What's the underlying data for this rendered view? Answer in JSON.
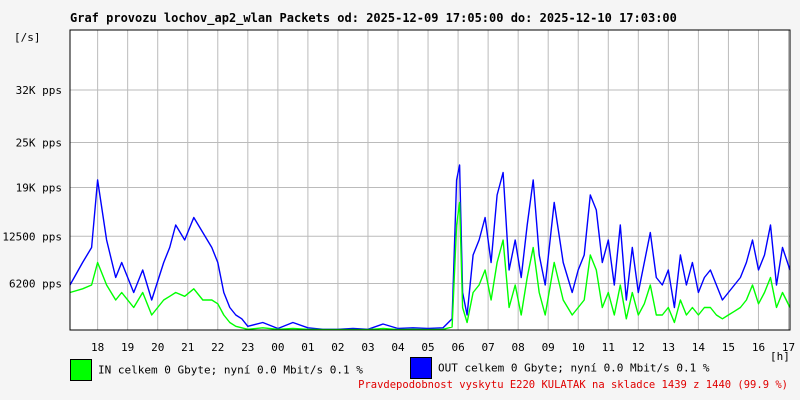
{
  "title": "Graf provozu lochov_ap2_wlan Packets od: 2025-12-09 17:05:00 do: 2025-12-10 17:03:00",
  "footer": "Pravdepodobnost vyskytu E220 KULATAK na skladce 1439 z 1440 (99.9 %)",
  "legend": {
    "in_text": "IN celkem 0 Gbyte; nyní   0.0 Mbit/s 0.1 %",
    "out_text": "OUT celkem 0 Gbyte; nyní   0.0 Mbit/s 0.1 %"
  },
  "colors": {
    "in": "#00ff00",
    "out": "#0000ff",
    "grid": "#bbbbbb"
  },
  "chart_data": {
    "type": "area",
    "ylabel": "[/s]",
    "xlabel": "[h]",
    "ylim": [
      0,
      40000
    ],
    "y_ticks": [
      {
        "value": 6200,
        "label": "6200 pps"
      },
      {
        "value": 12500,
        "label": "12500 pps"
      },
      {
        "value": 19000,
        "label": "19K pps"
      },
      {
        "value": 25000,
        "label": "25K pps"
      },
      {
        "value": 32000,
        "label": "32K pps"
      }
    ],
    "x_tick_labels": [
      "18",
      "19",
      "20",
      "21",
      "22",
      "23",
      "00",
      "01",
      "02",
      "03",
      "04",
      "05",
      "06",
      "07",
      "08",
      "09",
      "10",
      "11",
      "12",
      "13",
      "14",
      "15",
      "16",
      "17"
    ],
    "xlim_hours": [
      17.08,
      41.05
    ],
    "grid": true,
    "series": [
      {
        "name": "OUT",
        "x_hours": [
          17.08,
          17.5,
          17.8,
          18.0,
          18.3,
          18.6,
          18.8,
          19.2,
          19.5,
          19.8,
          20.2,
          20.4,
          20.6,
          20.9,
          21.2,
          21.5,
          21.8,
          22.0,
          22.2,
          22.4,
          22.6,
          22.8,
          23.0,
          23.5,
          24.0,
          24.5,
          25.0,
          25.5,
          26.0,
          26.5,
          27.0,
          27.5,
          28.0,
          28.5,
          29.0,
          29.5,
          29.8,
          29.95,
          30.05,
          30.15,
          30.3,
          30.5,
          30.7,
          30.9,
          31.1,
          31.3,
          31.5,
          31.7,
          31.9,
          32.1,
          32.3,
          32.5,
          32.7,
          32.9,
          33.2,
          33.5,
          33.8,
          34.0,
          34.2,
          34.4,
          34.6,
          34.8,
          35.0,
          35.2,
          35.4,
          35.6,
          35.8,
          36.0,
          36.2,
          36.4,
          36.6,
          36.8,
          37.0,
          37.2,
          37.4,
          37.6,
          37.8,
          38.0,
          38.2,
          38.4,
          38.6,
          38.8,
          39.0,
          39.2,
          39.4,
          39.6,
          39.8,
          40.0,
          40.2,
          40.4,
          40.6,
          40.8,
          41.05
        ],
        "values": [
          6000,
          9000,
          11000,
          20000,
          12000,
          7000,
          9000,
          5000,
          8000,
          4000,
          9000,
          11000,
          14000,
          12000,
          15000,
          13000,
          11000,
          9000,
          5000,
          3000,
          2000,
          1500,
          500,
          1000,
          200,
          1000,
          300,
          100,
          100,
          200,
          100,
          800,
          200,
          300,
          200,
          300,
          1500,
          20000,
          22000,
          5000,
          2000,
          10000,
          12000,
          15000,
          9000,
          18000,
          21000,
          8000,
          12000,
          7000,
          14000,
          20000,
          10000,
          6000,
          17000,
          9000,
          5000,
          8000,
          10000,
          18000,
          16000,
          9000,
          12000,
          6000,
          14000,
          4000,
          11000,
          5000,
          9000,
          13000,
          7000,
          6000,
          8000,
          3000,
          10000,
          6000,
          9000,
          5000,
          7000,
          8000,
          6000,
          4000,
          5000,
          6000,
          7000,
          9000,
          12000,
          8000,
          10000,
          14000,
          6000,
          11000,
          8000
        ]
      },
      {
        "name": "IN",
        "x_hours": [
          17.08,
          17.5,
          17.8,
          18.0,
          18.3,
          18.6,
          18.8,
          19.2,
          19.5,
          19.8,
          20.2,
          20.4,
          20.6,
          20.9,
          21.2,
          21.5,
          21.8,
          22.0,
          22.2,
          22.4,
          22.6,
          22.8,
          23.0,
          23.5,
          24.0,
          24.5,
          25.0,
          25.5,
          26.0,
          26.5,
          27.0,
          27.5,
          28.0,
          28.5,
          29.0,
          29.5,
          29.8,
          29.95,
          30.05,
          30.15,
          30.3,
          30.5,
          30.7,
          30.9,
          31.1,
          31.3,
          31.5,
          31.7,
          31.9,
          32.1,
          32.3,
          32.5,
          32.7,
          32.9,
          33.2,
          33.5,
          33.8,
          34.0,
          34.2,
          34.4,
          34.6,
          34.8,
          35.0,
          35.2,
          35.4,
          35.6,
          35.8,
          36.0,
          36.2,
          36.4,
          36.6,
          36.8,
          37.0,
          37.2,
          37.4,
          37.6,
          37.8,
          38.0,
          38.2,
          38.4,
          38.6,
          38.8,
          39.0,
          39.2,
          39.4,
          39.6,
          39.8,
          40.0,
          40.2,
          40.4,
          40.6,
          40.8,
          41.05
        ],
        "values": [
          5000,
          5500,
          6000,
          9000,
          6000,
          4000,
          5000,
          3000,
          5000,
          2000,
          4000,
          4500,
          5000,
          4500,
          5500,
          4000,
          4000,
          3500,
          2000,
          1000,
          500,
          300,
          100,
          300,
          100,
          200,
          100,
          50,
          50,
          50,
          50,
          200,
          50,
          100,
          50,
          100,
          400,
          14000,
          17000,
          3000,
          1000,
          5000,
          6000,
          8000,
          4000,
          9000,
          12000,
          3000,
          6000,
          2000,
          7000,
          11000,
          5000,
          2000,
          9000,
          4000,
          2000,
          3000,
          4000,
          10000,
          8000,
          3000,
          5000,
          2000,
          6000,
          1500,
          5000,
          2000,
          3500,
          6000,
          2000,
          2000,
          3000,
          1000,
          4000,
          2000,
          3000,
          2000,
          3000,
          3000,
          2000,
          1500,
          2000,
          2500,
          3000,
          4000,
          6000,
          3500,
          5000,
          7000,
          3000,
          5000,
          3000
        ]
      }
    ]
  }
}
